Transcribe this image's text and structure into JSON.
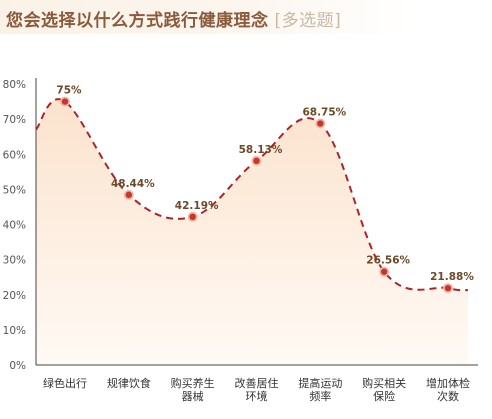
{
  "header": {
    "title": "您会选择以什么方式践行健康理念",
    "title_suffix": "[多选题]"
  },
  "colors": {
    "line": "#b0232a",
    "marker_fill": "#c0392b",
    "marker_ring": "#f3b4a6",
    "area_top": "#fbe3cd",
    "area_bottom": "#fffaf5",
    "label": "#6b4a2a",
    "title": "#8a5a3c"
  },
  "chart_data": {
    "type": "line",
    "title": "您会选择以什么方式践行健康理念 [多选题]",
    "xlabel": "",
    "ylabel": "",
    "ylim": [
      0,
      80
    ],
    "yticks": [
      "0%",
      "10%",
      "20%",
      "30%",
      "40%",
      "50%",
      "60%",
      "70%",
      "80%"
    ],
    "categories": [
      [
        "绿色出行"
      ],
      [
        "规律饮食"
      ],
      [
        "购买养生",
        "器械"
      ],
      [
        "改善居住",
        "环境"
      ],
      [
        "提高运动",
        "频率"
      ],
      [
        "购买相关",
        "保险"
      ],
      [
        "增加体检",
        "次数"
      ]
    ],
    "values": [
      75,
      48.44,
      42.19,
      58.13,
      68.75,
      26.56,
      21.88
    ],
    "data_labels": [
      "75%",
      "48.44%",
      "42.19%",
      "58.13%",
      "68.75%",
      "26.56%",
      "21.88%"
    ],
    "grid": false,
    "style": "dashed smooth line with area fill"
  }
}
